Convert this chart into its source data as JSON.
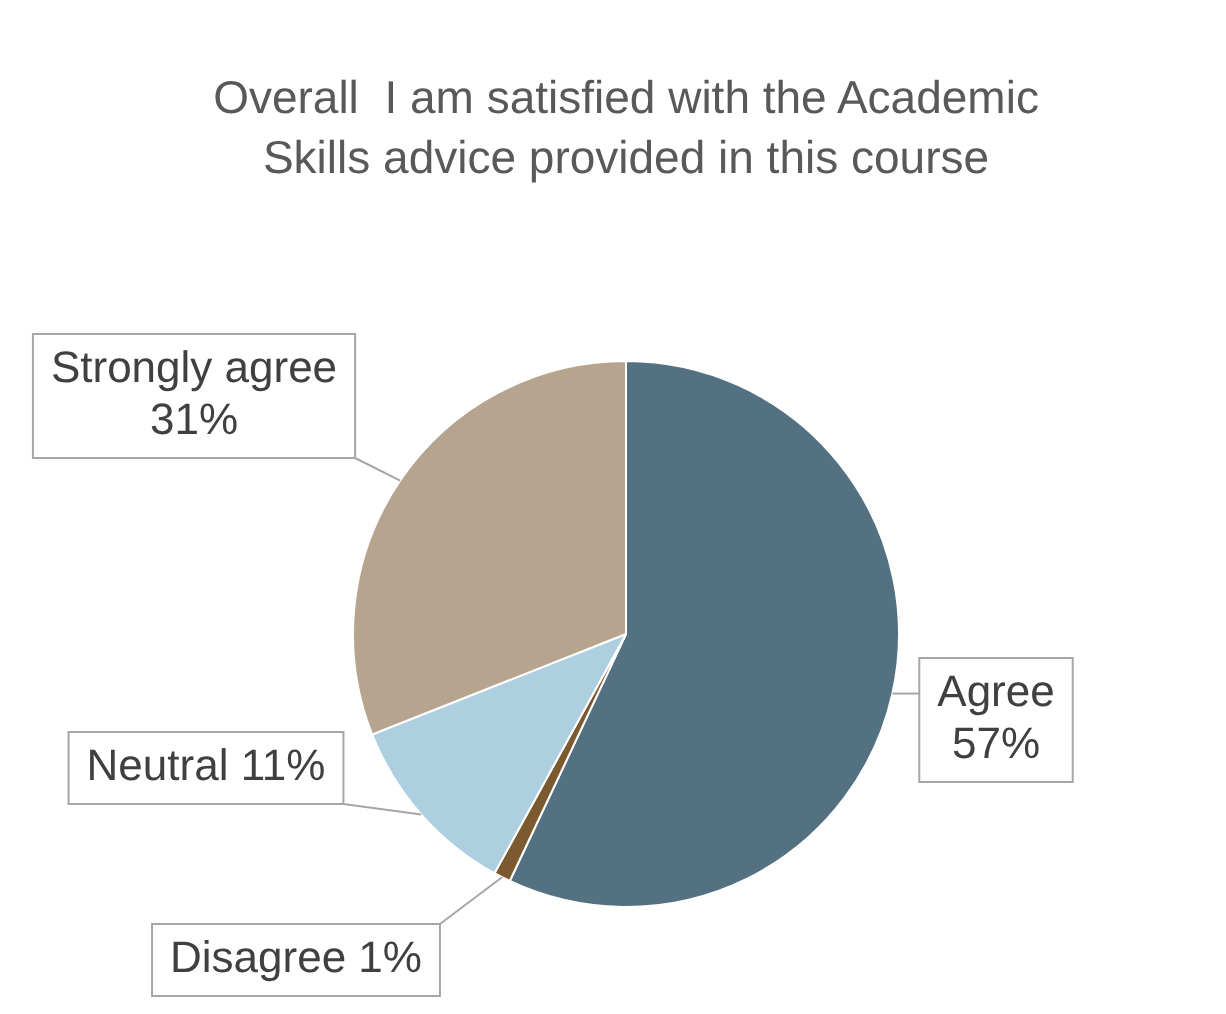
{
  "chart_data": {
    "type": "pie",
    "title": "Overall  I am satisfied with the Academic Skills advice provided in this course",
    "categories": [
      "Agree",
      "Disagree",
      "Neutral",
      "Strongly agree"
    ],
    "values": [
      57,
      1,
      11,
      31
    ],
    "value_labels": [
      "57%",
      "1%",
      "11%",
      "31%"
    ],
    "colors": [
      "#537180",
      "#7a5a2e",
      "#aecfe0",
      "#b6a48e"
    ]
  }
}
